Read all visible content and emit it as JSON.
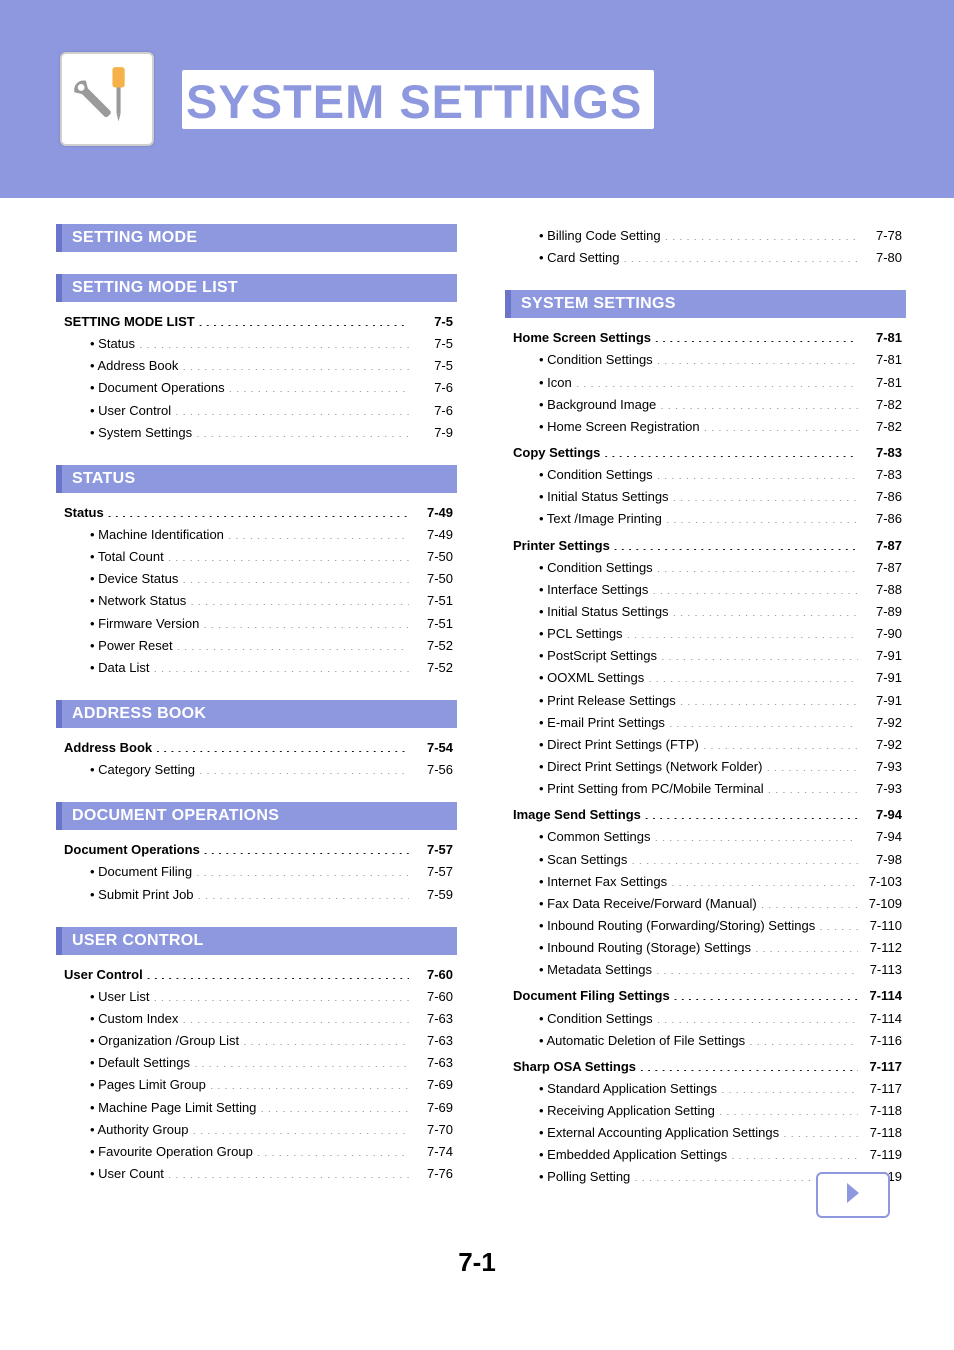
{
  "page_title": "SYSTEM SETTINGS",
  "page_number": "7-1",
  "colors": {
    "banner_bg": "#8e98df",
    "banner_accent": "#6a75c9",
    "text": "#000000",
    "white": "#ffffff"
  },
  "icon": {
    "name": "wrench-screwdriver",
    "wrench_color": "#9a9a9a",
    "screwdriver_handle": "#f6b24a",
    "screwdriver_shaft": "#9a9a9a"
  },
  "left_sections": [
    {
      "header": "SETTING MODE",
      "groups": []
    },
    {
      "header": "SETTING MODE LIST",
      "groups": [
        {
          "title": "SETTING MODE LIST",
          "page": "7-5",
          "items": [
            {
              "label": "Status",
              "page": "7-5"
            },
            {
              "label": "Address Book",
              "page": "7-5"
            },
            {
              "label": "Document Operations",
              "page": "7-6"
            },
            {
              "label": "User Control",
              "page": "7-6"
            },
            {
              "label": "System Settings",
              "page": "7-9"
            }
          ]
        }
      ]
    },
    {
      "header": "STATUS",
      "groups": [
        {
          "title": "Status",
          "page": "7-49",
          "items": [
            {
              "label": "Machine Identification",
              "page": "7-49"
            },
            {
              "label": "Total Count",
              "page": "7-50"
            },
            {
              "label": "Device Status",
              "page": "7-50"
            },
            {
              "label": "Network Status",
              "page": "7-51"
            },
            {
              "label": "Firmware Version",
              "page": "7-51"
            },
            {
              "label": "Power Reset",
              "page": "7-52"
            },
            {
              "label": "Data List",
              "page": "7-52"
            }
          ]
        }
      ]
    },
    {
      "header": "ADDRESS BOOK",
      "groups": [
        {
          "title": "Address Book",
          "page": "7-54",
          "items": [
            {
              "label": "Category Setting",
              "page": "7-56"
            }
          ]
        }
      ]
    },
    {
      "header": "DOCUMENT OPERATIONS",
      "groups": [
        {
          "title": "Document Operations",
          "page": "7-57",
          "items": [
            {
              "label": "Document Filing",
              "page": "7-57"
            },
            {
              "label": "Submit Print Job",
              "page": "7-59"
            }
          ]
        }
      ]
    },
    {
      "header": "USER CONTROL",
      "groups": [
        {
          "title": "User Control",
          "page": "7-60",
          "items": [
            {
              "label": "User List",
              "page": "7-60"
            },
            {
              "label": "Custom Index",
              "page": "7-63"
            },
            {
              "label": "Organization /Group List",
              "page": "7-63"
            },
            {
              "label": "Default Settings",
              "page": "7-63"
            },
            {
              "label": "Pages Limit Group",
              "page": "7-69"
            },
            {
              "label": "Machine Page Limit Setting",
              "page": "7-69"
            },
            {
              "label": "Authority Group",
              "page": "7-70"
            },
            {
              "label": "Favourite Operation Group",
              "page": "7-74"
            },
            {
              "label": "User Count",
              "page": "7-76"
            }
          ]
        }
      ]
    }
  ],
  "right_pre_items": [
    {
      "label": "Billing Code Setting",
      "page": "7-78"
    },
    {
      "label": "Card Setting",
      "page": "7-80"
    }
  ],
  "right_section_header": "SYSTEM SETTINGS",
  "right_groups": [
    {
      "title": "Home Screen Settings",
      "page": "7-81",
      "items": [
        {
          "label": "Condition Settings",
          "page": "7-81"
        },
        {
          "label": "Icon",
          "page": "7-81"
        },
        {
          "label": "Background Image",
          "page": "7-82"
        },
        {
          "label": "Home Screen Registration",
          "page": "7-82"
        }
      ]
    },
    {
      "title": "Copy Settings",
      "page": "7-83",
      "items": [
        {
          "label": "Condition Settings",
          "page": "7-83"
        },
        {
          "label": "Initial Status Settings",
          "page": "7-86"
        },
        {
          "label": "Text /Image Printing",
          "page": "7-86"
        }
      ]
    },
    {
      "title": "Printer Settings",
      "page": "7-87",
      "items": [
        {
          "label": "Condition Settings",
          "page": "7-87"
        },
        {
          "label": "Interface Settings",
          "page": "7-88"
        },
        {
          "label": "Initial Status Settings",
          "page": "7-89"
        },
        {
          "label": "PCL Settings",
          "page": "7-90"
        },
        {
          "label": "PostScript Settings",
          "page": "7-91"
        },
        {
          "label": "OOXML Settings",
          "page": "7-91"
        },
        {
          "label": "Print Release Settings",
          "page": "7-91"
        },
        {
          "label": "E-mail Print Settings",
          "page": "7-92"
        },
        {
          "label": "Direct Print Settings (FTP)",
          "page": "7-92"
        },
        {
          "label": "Direct Print Settings (Network Folder)",
          "page": "7-93"
        },
        {
          "label": "Print Setting from PC/Mobile Terminal",
          "page": "7-93"
        }
      ]
    },
    {
      "title": "Image Send Settings",
      "page": "7-94",
      "items": [
        {
          "label": "Common Settings",
          "page": "7-94"
        },
        {
          "label": "Scan Settings",
          "page": "7-98"
        },
        {
          "label": "Internet Fax Settings",
          "page": "7-103"
        },
        {
          "label": "Fax Data Receive/Forward (Manual)",
          "page": "7-109"
        },
        {
          "label": "Inbound Routing (Forwarding/Storing) Settings",
          "page": "7-110"
        },
        {
          "label": "Inbound Routing (Storage) Settings",
          "page": "7-112"
        },
        {
          "label": "Metadata Settings",
          "page": "7-113"
        }
      ]
    },
    {
      "title": "Document Filing Settings",
      "page": "7-114",
      "items": [
        {
          "label": "Condition Settings",
          "page": "7-114"
        },
        {
          "label": "Automatic Deletion of File Settings",
          "page": "7-116"
        }
      ]
    },
    {
      "title": "Sharp OSA Settings",
      "page": "7-117",
      "items": [
        {
          "label": "Standard Application Settings",
          "page": "7-117"
        },
        {
          "label": "Receiving Application Setting",
          "page": "7-118"
        },
        {
          "label": "External Accounting Application Settings",
          "page": "7-118"
        },
        {
          "label": "Embedded Application Settings",
          "page": "7-119"
        },
        {
          "label": "Polling Setting",
          "page": "7-119"
        }
      ]
    }
  ],
  "next_button": {
    "label": "Next page"
  }
}
